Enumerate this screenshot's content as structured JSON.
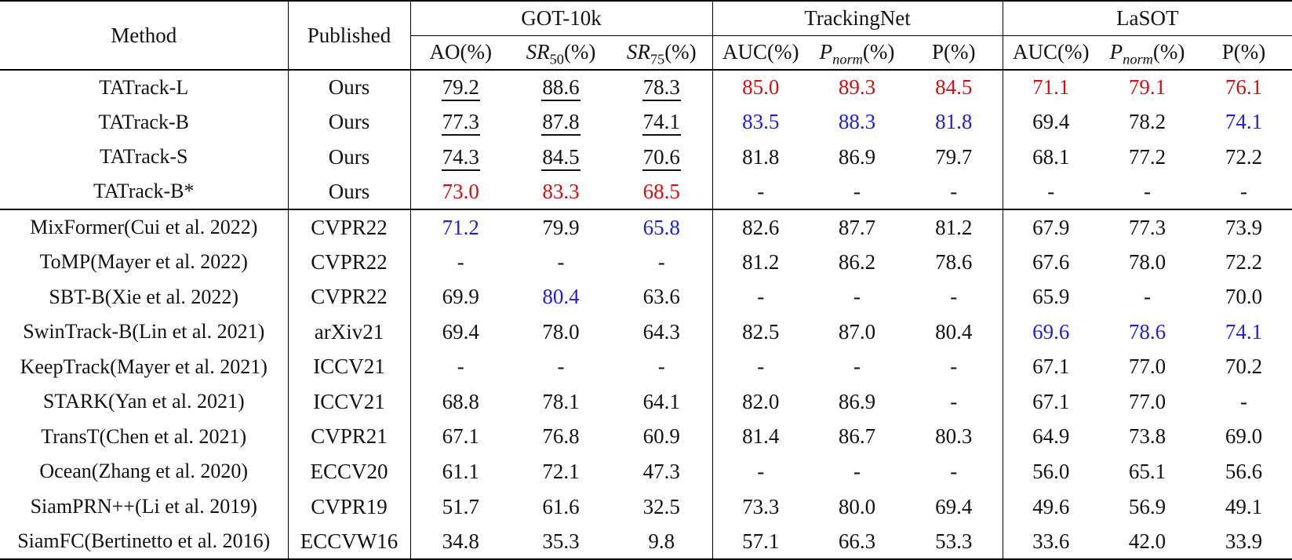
{
  "colors": {
    "best_value_red": "#cc1111",
    "second_value_blue": "#2121cc",
    "text": "#121212",
    "rule": "#000000"
  },
  "table": {
    "columns": {
      "method": "Method",
      "published": "Published",
      "groups": [
        {
          "label": "GOT-10k",
          "subcols": [
            {
              "pre": "AO",
              "post": "(%)"
            },
            {
              "it": "SR",
              "sub": "50",
              "post": "(%)"
            },
            {
              "it": "SR",
              "sub": "75",
              "post": "(%)"
            }
          ]
        },
        {
          "label": "TrackingNet",
          "subcols": [
            {
              "pre": "AUC",
              "post": "(%)"
            },
            {
              "it": "P",
              "subit": "norm",
              "post": "(%)"
            },
            {
              "pre": "P",
              "post": "(%)"
            }
          ]
        },
        {
          "label": "LaSOT",
          "subcols": [
            {
              "pre": "AUC",
              "post": "(%)"
            },
            {
              "it": "P",
              "subit": "norm",
              "post": "(%)"
            },
            {
              "pre": "P",
              "post": "(%)"
            }
          ]
        }
      ]
    },
    "style_legend": {
      "u": "underlined",
      "r": "best-red",
      "b": "second-blue",
      "": "plain"
    },
    "rows": [
      {
        "method": "TATrack-L",
        "published": "Ours",
        "cells": [
          [
            "79.2",
            "u"
          ],
          [
            "88.6",
            "u"
          ],
          [
            "78.3",
            "u"
          ],
          [
            "85.0",
            "r"
          ],
          [
            "89.3",
            "r"
          ],
          [
            "84.5",
            "r"
          ],
          [
            "71.1",
            "r"
          ],
          [
            "79.1",
            "r"
          ],
          [
            "76.1",
            "r"
          ]
        ]
      },
      {
        "method": "TATrack-B",
        "published": "Ours",
        "cells": [
          [
            "77.3",
            "u"
          ],
          [
            "87.8",
            "u"
          ],
          [
            "74.1",
            "u"
          ],
          [
            "83.5",
            "b"
          ],
          [
            "88.3",
            "b"
          ],
          [
            "81.8",
            "b"
          ],
          [
            "69.4",
            ""
          ],
          [
            "78.2",
            ""
          ],
          [
            "74.1",
            "b"
          ]
        ]
      },
      {
        "method": "TATrack-S",
        "published": "Ours",
        "cells": [
          [
            "74.3",
            "u"
          ],
          [
            "84.5",
            "u"
          ],
          [
            "70.6",
            "u"
          ],
          [
            "81.8",
            ""
          ],
          [
            "86.9",
            ""
          ],
          [
            "79.7",
            ""
          ],
          [
            "68.1",
            ""
          ],
          [
            "77.2",
            ""
          ],
          [
            "72.2",
            ""
          ]
        ]
      },
      {
        "method": "TATrack-B*",
        "published": "Ours",
        "cells": [
          [
            "73.0",
            "r"
          ],
          [
            "83.3",
            "r"
          ],
          [
            "68.5",
            "r"
          ],
          [
            "-",
            ""
          ],
          [
            "-",
            ""
          ],
          [
            "-",
            ""
          ],
          [
            "-",
            ""
          ],
          [
            "-",
            ""
          ],
          [
            "-",
            ""
          ]
        ]
      },
      {
        "method": "MixFormer(Cui et al. 2022)",
        "published": "CVPR22",
        "cells": [
          [
            "71.2",
            "b"
          ],
          [
            "79.9",
            ""
          ],
          [
            "65.8",
            "b"
          ],
          [
            "82.6",
            ""
          ],
          [
            "87.7",
            ""
          ],
          [
            "81.2",
            ""
          ],
          [
            "67.9",
            ""
          ],
          [
            "77.3",
            ""
          ],
          [
            "73.9",
            ""
          ]
        ]
      },
      {
        "method": "ToMP(Mayer et al. 2022)",
        "published": "CVPR22",
        "cells": [
          [
            "-",
            ""
          ],
          [
            "-",
            ""
          ],
          [
            "-",
            ""
          ],
          [
            "81.2",
            ""
          ],
          [
            "86.2",
            ""
          ],
          [
            "78.6",
            ""
          ],
          [
            "67.6",
            ""
          ],
          [
            "78.0",
            ""
          ],
          [
            "72.2",
            ""
          ]
        ]
      },
      {
        "method": "SBT-B(Xie et al. 2022)",
        "published": "CVPR22",
        "cells": [
          [
            "69.9",
            ""
          ],
          [
            "80.4",
            "b"
          ],
          [
            "63.6",
            ""
          ],
          [
            "-",
            ""
          ],
          [
            "-",
            ""
          ],
          [
            "-",
            ""
          ],
          [
            "65.9",
            ""
          ],
          [
            "-",
            ""
          ],
          [
            "70.0",
            ""
          ]
        ]
      },
      {
        "method": "SwinTrack-B(Lin et al. 2021)",
        "published": "arXiv21",
        "cells": [
          [
            "69.4",
            ""
          ],
          [
            "78.0",
            ""
          ],
          [
            "64.3",
            ""
          ],
          [
            "82.5",
            ""
          ],
          [
            "87.0",
            ""
          ],
          [
            "80.4",
            ""
          ],
          [
            "69.6",
            "b"
          ],
          [
            "78.6",
            "b"
          ],
          [
            "74.1",
            "b"
          ]
        ]
      },
      {
        "method": "KeepTrack(Mayer et al. 2021)",
        "published": "ICCV21",
        "cells": [
          [
            "-",
            ""
          ],
          [
            "-",
            ""
          ],
          [
            "-",
            ""
          ],
          [
            "-",
            ""
          ],
          [
            "-",
            ""
          ],
          [
            "-",
            ""
          ],
          [
            "67.1",
            ""
          ],
          [
            "77.0",
            ""
          ],
          [
            "70.2",
            ""
          ]
        ]
      },
      {
        "method": "STARK(Yan et al. 2021)",
        "published": "ICCV21",
        "cells": [
          [
            "68.8",
            ""
          ],
          [
            "78.1",
            ""
          ],
          [
            "64.1",
            ""
          ],
          [
            "82.0",
            ""
          ],
          [
            "86.9",
            ""
          ],
          [
            "-",
            ""
          ],
          [
            "67.1",
            ""
          ],
          [
            "77.0",
            ""
          ],
          [
            "-",
            ""
          ]
        ]
      },
      {
        "method": "TransT(Chen et al. 2021)",
        "published": "CVPR21",
        "cells": [
          [
            "67.1",
            ""
          ],
          [
            "76.8",
            ""
          ],
          [
            "60.9",
            ""
          ],
          [
            "81.4",
            ""
          ],
          [
            "86.7",
            ""
          ],
          [
            "80.3",
            ""
          ],
          [
            "64.9",
            ""
          ],
          [
            "73.8",
            ""
          ],
          [
            "69.0",
            ""
          ]
        ]
      },
      {
        "method": "Ocean(Zhang et al. 2020)",
        "published": "ECCV20",
        "cells": [
          [
            "61.1",
            ""
          ],
          [
            "72.1",
            ""
          ],
          [
            "47.3",
            ""
          ],
          [
            "-",
            ""
          ],
          [
            "-",
            ""
          ],
          [
            "-",
            ""
          ],
          [
            "56.0",
            ""
          ],
          [
            "65.1",
            ""
          ],
          [
            "56.6",
            ""
          ]
        ]
      },
      {
        "method": "SiamPRN++(Li et al. 2019)",
        "published": "CVPR19",
        "cells": [
          [
            "51.7",
            ""
          ],
          [
            "61.6",
            ""
          ],
          [
            "32.5",
            ""
          ],
          [
            "73.3",
            ""
          ],
          [
            "80.0",
            ""
          ],
          [
            "69.4",
            ""
          ],
          [
            "49.6",
            ""
          ],
          [
            "56.9",
            ""
          ],
          [
            "49.1",
            ""
          ]
        ]
      },
      {
        "method": "SiamFC(Bertinetto et al. 2016)",
        "published": "ECCVW16",
        "cells": [
          [
            "34.8",
            ""
          ],
          [
            "35.3",
            ""
          ],
          [
            "9.8",
            ""
          ],
          [
            "57.1",
            ""
          ],
          [
            "66.3",
            ""
          ],
          [
            "53.3",
            ""
          ],
          [
            "33.6",
            ""
          ],
          [
            "42.0",
            ""
          ],
          [
            "33.9",
            ""
          ]
        ]
      }
    ]
  }
}
